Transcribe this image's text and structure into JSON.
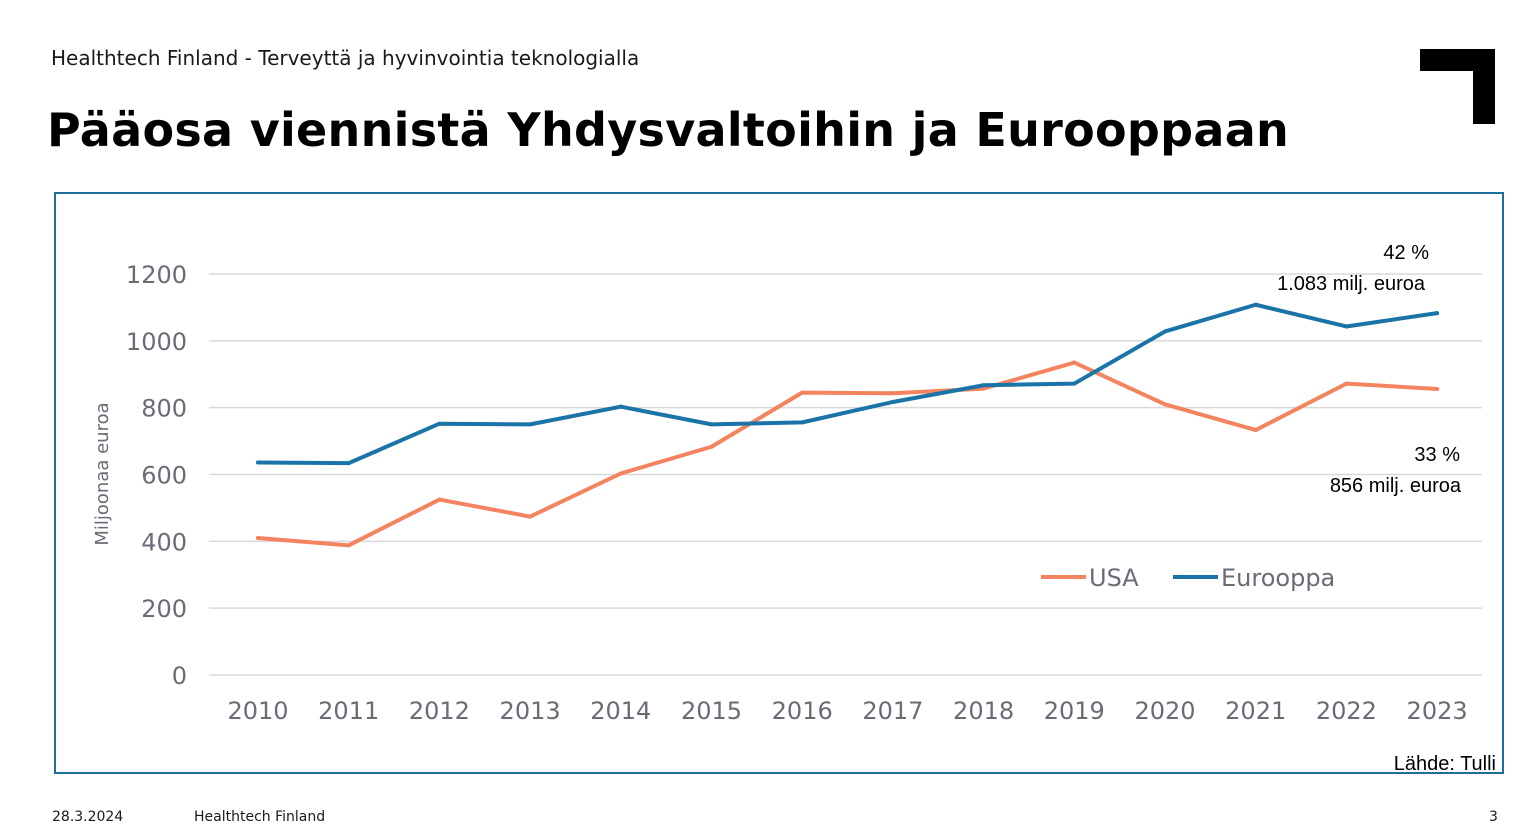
{
  "header": {
    "subtitle": "Healthtech Finland - Terveyttä ja hyvinvointia teknologialla",
    "title": "Pääosa viennistä Yhdysvaltoihin ja Eurooppaan"
  },
  "logo": {
    "icon": "corner-bracket-logo-icon",
    "color": "#000000"
  },
  "chart_data": {
    "type": "line",
    "title": "",
    "xlabel": "",
    "ylabel": "Miljoonaa euroa",
    "x": [
      "2010",
      "2011",
      "2012",
      "2013",
      "2014",
      "2015",
      "2016",
      "2017",
      "2018",
      "2019",
      "2020",
      "2021",
      "2022",
      "2023"
    ],
    "ylim": [
      0,
      1200
    ],
    "yticks": [
      0,
      200,
      400,
      600,
      800,
      1000,
      1200
    ],
    "grid": true,
    "legend_position": "bottom-right",
    "series": [
      {
        "name": "USA",
        "color": "#f4845f",
        "values": [
          410,
          388,
          525,
          474,
          603,
          683,
          845,
          843,
          857,
          935,
          810,
          733,
          872,
          856
        ]
      },
      {
        "name": "Eurooppa",
        "color": "#1a74a8",
        "values": [
          636,
          634,
          752,
          750,
          803,
          750,
          756,
          817,
          867,
          872,
          1028,
          1108,
          1043,
          1083
        ]
      }
    ],
    "annotations": [
      {
        "series": "Eurooppa",
        "line1": "42 %",
        "line2": "1.083 milj. euroa"
      },
      {
        "series": "USA",
        "line1": "33 %",
        "line2": "856 milj. euroa"
      }
    ],
    "source": "Lähde: Tulli"
  },
  "footer": {
    "date": "28.3.2024",
    "org": "Healthtech Finland",
    "page": "3"
  }
}
